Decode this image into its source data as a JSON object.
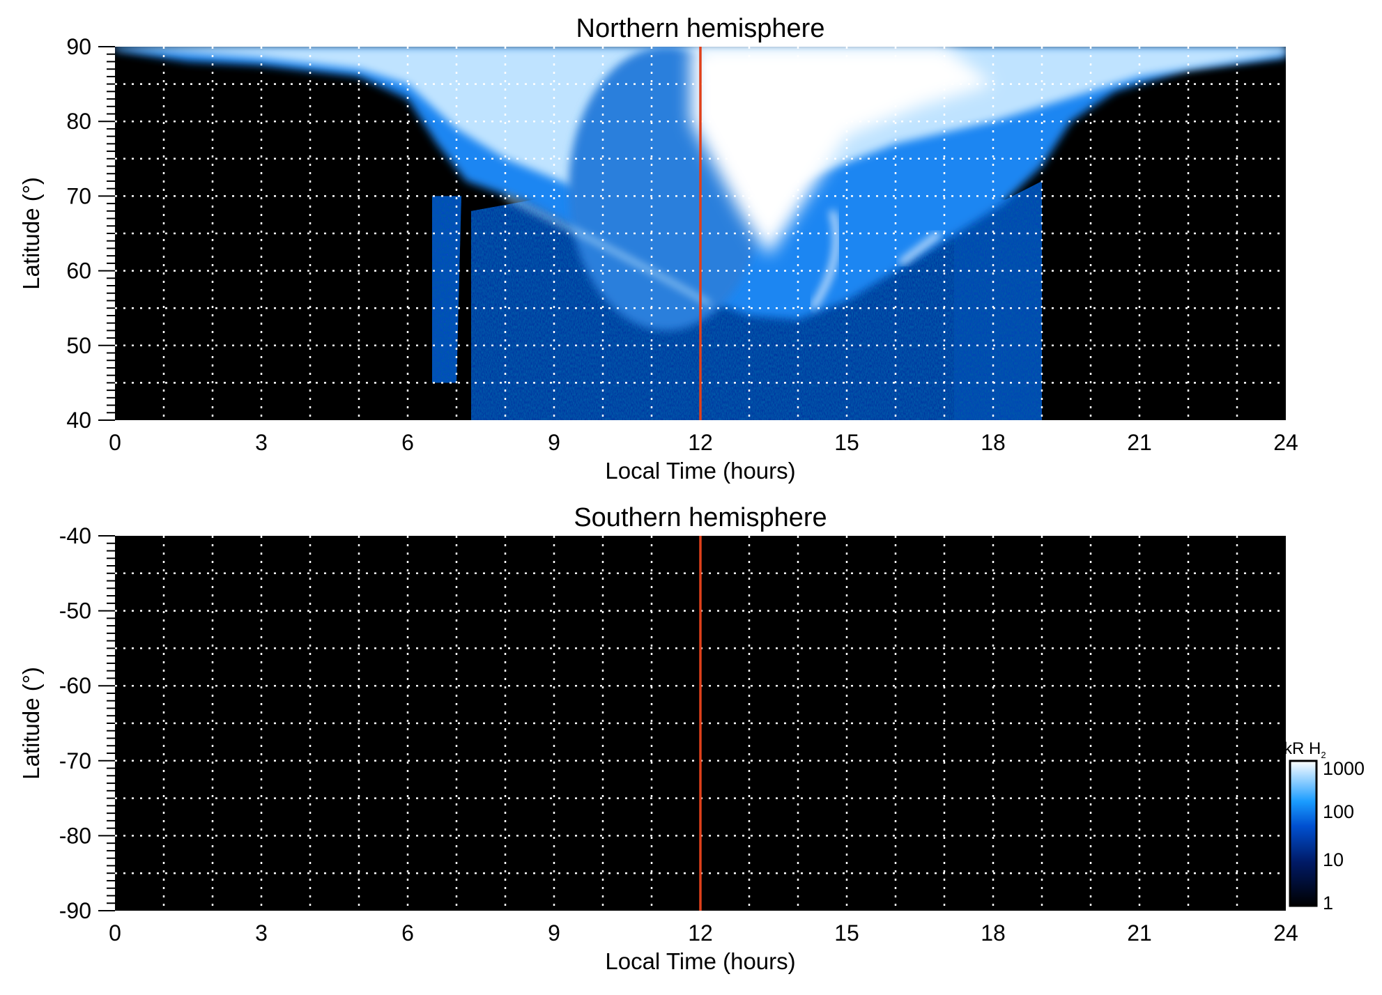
{
  "chart_data": [
    {
      "type": "heatmap",
      "title": "Northern hemisphere",
      "xlabel": "Local Time (hours)",
      "ylabel": "Latitude (°)",
      "xlim": [
        0,
        24
      ],
      "ylim": [
        40,
        90
      ],
      "xticks": [
        0,
        3,
        6,
        9,
        12,
        15,
        18,
        21,
        24
      ],
      "yticks": [
        40,
        50,
        60,
        70,
        80,
        90
      ],
      "grid": "dotted, every 1 hour and 5 degrees",
      "marker_line": {
        "x": 12,
        "color": "#e0401a"
      },
      "description_values": {
        "emission_region_lt": [
          6.5,
          19
        ],
        "oval_min_lat": 53
      }
    },
    {
      "type": "heatmap",
      "title": "Southern hemisphere",
      "xlabel": "Local Time (hours)",
      "ylabel": "Latitude (°)",
      "xlim": [
        0,
        24
      ],
      "ylim": [
        -90,
        -40
      ],
      "xticks": [
        0,
        3,
        6,
        9,
        12,
        15,
        18,
        21,
        24
      ],
      "yticks": [
        -40,
        -50,
        -60,
        -70,
        -80,
        -90
      ],
      "grid": "dotted, every 1 hour and 5 degrees",
      "marker_line": {
        "x": 12,
        "color": "#e0401a"
      }
    }
  ],
  "colorbar": {
    "label": "kR H",
    "label_sub": "2",
    "scale": "log",
    "ticks": [
      "1000",
      "100",
      "10",
      "1"
    ],
    "range": [
      1,
      1000
    ],
    "colors": [
      "#000000",
      "#001a66",
      "#0050d0",
      "#1a9cff",
      "#ffffff"
    ]
  }
}
